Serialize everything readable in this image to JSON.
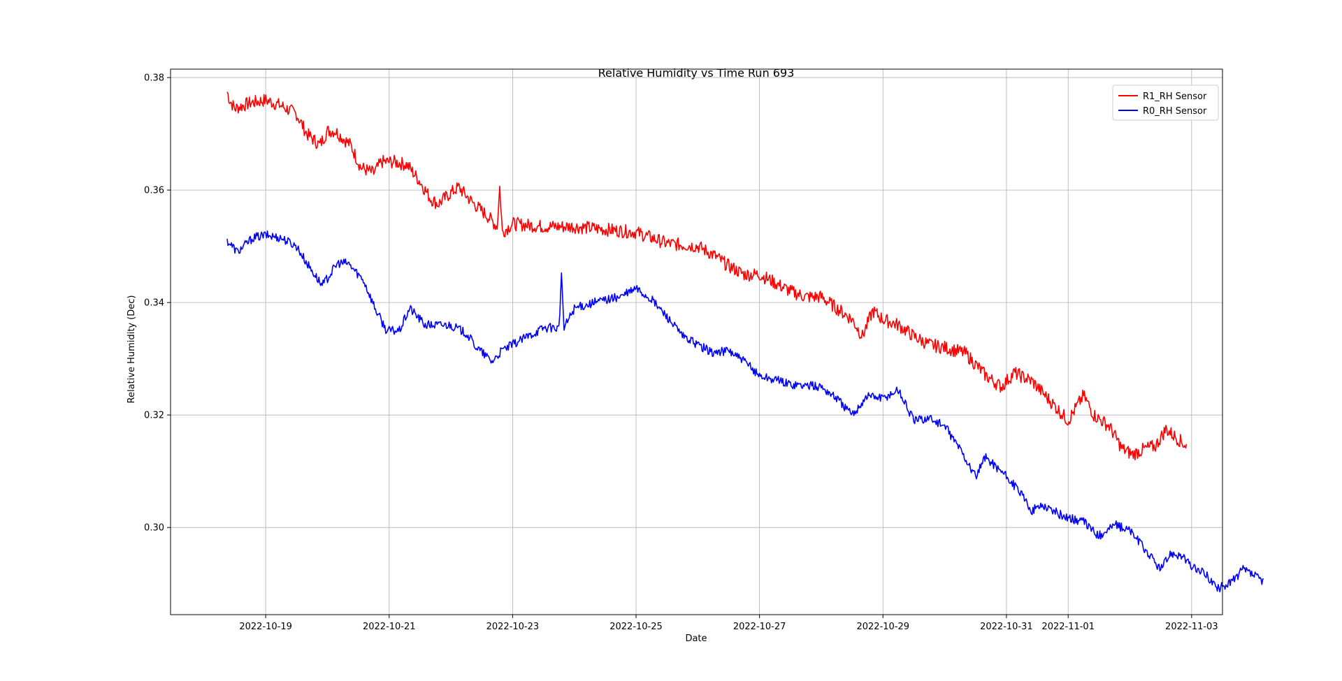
{
  "chart_data": {
    "type": "line",
    "title": "Relative Humidity vs Time Run 693",
    "xlabel": "Date",
    "ylabel": "Relative Humidity (Dec)",
    "xlim": [
      "2022-10-17T11:00",
      "2022-11-03T12:00"
    ],
    "ylim": [
      0.2845,
      0.3815
    ],
    "x_ticks": [
      "2022-10-19",
      "2022-10-21",
      "2022-10-23",
      "2022-10-25",
      "2022-10-27",
      "2022-10-29",
      "2022-10-31",
      "2022-11-01",
      "2022-11-03"
    ],
    "y_ticks": [
      "0.30",
      "0.32",
      "0.34",
      "0.36",
      "0.38"
    ],
    "grid": true,
    "legend_position": "top-right",
    "series": [
      {
        "name": "R1_RH Sensor",
        "color": "#ff0000",
        "noise": 0.0012,
        "points": [
          [
            "2022-10-18T09:00",
            0.3775
          ],
          [
            "2022-10-18T10:00",
            0.376
          ],
          [
            "2022-10-18T12:00",
            0.3745
          ],
          [
            "2022-10-18T18:00",
            0.3755
          ],
          [
            "2022-10-19T00:00",
            0.376
          ],
          [
            "2022-10-19T06:00",
            0.375
          ],
          [
            "2022-10-19T12:00",
            0.3735
          ],
          [
            "2022-10-19T16:00",
            0.37
          ],
          [
            "2022-10-19T21:00",
            0.368
          ],
          [
            "2022-10-20T00:00",
            0.3705
          ],
          [
            "2022-10-20T03:00",
            0.3705
          ],
          [
            "2022-10-20T09:00",
            0.368
          ],
          [
            "2022-10-20T13:00",
            0.364
          ],
          [
            "2022-10-20T18:00",
            0.363
          ],
          [
            "2022-10-20T21:00",
            0.365
          ],
          [
            "2022-10-21T02:00",
            0.365
          ],
          [
            "2022-10-21T07:00",
            0.3645
          ],
          [
            "2022-10-21T12:00",
            0.3615
          ],
          [
            "2022-10-21T16:00",
            0.3585
          ],
          [
            "2022-10-21T19:00",
            0.3575
          ],
          [
            "2022-10-22T00:00",
            0.3595
          ],
          [
            "2022-10-22T03:00",
            0.3605
          ],
          [
            "2022-10-22T09:00",
            0.3575
          ],
          [
            "2022-10-22T14:00",
            0.3555
          ],
          [
            "2022-10-22T18:00",
            0.3535
          ],
          [
            "2022-10-22T19:00",
            0.3605
          ],
          [
            "2022-10-22T20:00",
            0.3525
          ],
          [
            "2022-10-23T00:00",
            0.354
          ],
          [
            "2022-10-23T12:00",
            0.3535
          ],
          [
            "2022-10-24T00:00",
            0.3535
          ],
          [
            "2022-10-24T12:00",
            0.353
          ],
          [
            "2022-10-25T00:00",
            0.3525
          ],
          [
            "2022-10-25T12:00",
            0.3505
          ],
          [
            "2022-10-26T00:00",
            0.35
          ],
          [
            "2022-10-26T06:00",
            0.3485
          ],
          [
            "2022-10-26T12:00",
            0.3465
          ],
          [
            "2022-10-26T18:00",
            0.345
          ],
          [
            "2022-10-27T00:00",
            0.345
          ],
          [
            "2022-10-27T06:00",
            0.3435
          ],
          [
            "2022-10-27T12:00",
            0.342
          ],
          [
            "2022-10-27T18:00",
            0.341
          ],
          [
            "2022-10-28T00:00",
            0.341
          ],
          [
            "2022-10-28T06:00",
            0.339
          ],
          [
            "2022-10-28T12:00",
            0.337
          ],
          [
            "2022-10-28T16:00",
            0.334
          ],
          [
            "2022-10-28T20:00",
            0.3385
          ],
          [
            "2022-10-29T00:00",
            0.337
          ],
          [
            "2022-10-29T06:00",
            0.336
          ],
          [
            "2022-10-29T12:00",
            0.334
          ],
          [
            "2022-10-29T18:00",
            0.3325
          ],
          [
            "2022-10-30T00:00",
            0.332
          ],
          [
            "2022-10-30T08:00",
            0.331
          ],
          [
            "2022-10-30T16:00",
            0.327
          ],
          [
            "2022-10-30T22:00",
            0.325
          ],
          [
            "2022-10-31T03:00",
            0.3275
          ],
          [
            "2022-10-31T10:00",
            0.326
          ],
          [
            "2022-10-31T14:00",
            0.324
          ],
          [
            "2022-10-31T20:00",
            0.321
          ],
          [
            "2022-11-01T00:00",
            0.319
          ],
          [
            "2022-11-01T06:00",
            0.3235
          ],
          [
            "2022-11-01T10:00",
            0.32
          ],
          [
            "2022-11-01T16:00",
            0.318
          ],
          [
            "2022-11-01T21:00",
            0.314
          ],
          [
            "2022-11-02T01:00",
            0.313
          ],
          [
            "2022-11-02T06:00",
            0.314
          ],
          [
            "2022-11-02T10:00",
            0.3145
          ],
          [
            "2022-11-02T14:00",
            0.3175
          ],
          [
            "2022-11-02T18:00",
            0.316
          ],
          [
            "2022-11-02T22:00",
            0.3145
          ]
        ]
      },
      {
        "name": "R0_RH Sensor",
        "color": "#0000ff",
        "noise": 0.0008,
        "points": [
          [
            "2022-10-18T09:00",
            0.351
          ],
          [
            "2022-10-18T13:00",
            0.349
          ],
          [
            "2022-10-18T19:00",
            0.3515
          ],
          [
            "2022-10-19T00:00",
            0.352
          ],
          [
            "2022-10-19T06:00",
            0.3515
          ],
          [
            "2022-10-19T12:00",
            0.35
          ],
          [
            "2022-10-19T16:00",
            0.347
          ],
          [
            "2022-10-19T22:00",
            0.343
          ],
          [
            "2022-10-20T04:00",
            0.347
          ],
          [
            "2022-10-20T08:00",
            0.347
          ],
          [
            "2022-10-20T14:00",
            0.344
          ],
          [
            "2022-10-20T19:00",
            0.3385
          ],
          [
            "2022-10-20T23:00",
            0.335
          ],
          [
            "2022-10-21T04:00",
            0.335
          ],
          [
            "2022-10-21T08:00",
            0.339
          ],
          [
            "2022-10-21T14:00",
            0.336
          ],
          [
            "2022-10-22T00:00",
            0.336
          ],
          [
            "2022-10-22T06:00",
            0.3345
          ],
          [
            "2022-10-22T10:00",
            0.332
          ],
          [
            "2022-10-22T16:00",
            0.3295
          ],
          [
            "2022-10-22T20:00",
            0.3315
          ],
          [
            "2022-10-23T00:00",
            0.3325
          ],
          [
            "2022-10-23T06:00",
            0.334
          ],
          [
            "2022-10-23T12:00",
            0.3355
          ],
          [
            "2022-10-23T18:00",
            0.3355
          ],
          [
            "2022-10-23T19:00",
            0.3445
          ],
          [
            "2022-10-23T20:00",
            0.3355
          ],
          [
            "2022-10-24T00:00",
            0.339
          ],
          [
            "2022-10-24T12:00",
            0.3405
          ],
          [
            "2022-10-24T18:00",
            0.341
          ],
          [
            "2022-10-25T00:00",
            0.3425
          ],
          [
            "2022-10-25T06:00",
            0.3405
          ],
          [
            "2022-10-25T12:00",
            0.3375
          ],
          [
            "2022-10-25T18:00",
            0.334
          ],
          [
            "2022-10-26T00:00",
            0.3325
          ],
          [
            "2022-10-26T06:00",
            0.331
          ],
          [
            "2022-10-26T12:00",
            0.3315
          ],
          [
            "2022-10-26T18:00",
            0.3295
          ],
          [
            "2022-10-27T00:00",
            0.327
          ],
          [
            "2022-10-27T12:00",
            0.3255
          ],
          [
            "2022-10-28T00:00",
            0.325
          ],
          [
            "2022-10-28T06:00",
            0.323
          ],
          [
            "2022-10-28T12:00",
            0.32
          ],
          [
            "2022-10-28T18:00",
            0.3235
          ],
          [
            "2022-10-29T00:00",
            0.323
          ],
          [
            "2022-10-29T06:00",
            0.3245
          ],
          [
            "2022-10-29T12:00",
            0.319
          ],
          [
            "2022-10-29T18:00",
            0.3195
          ],
          [
            "2022-10-30T00:00",
            0.318
          ],
          [
            "2022-10-30T06:00",
            0.314
          ],
          [
            "2022-10-30T12:00",
            0.309
          ],
          [
            "2022-10-30T16:00",
            0.3125
          ],
          [
            "2022-10-30T22:00",
            0.31
          ],
          [
            "2022-10-31T04:00",
            0.307
          ],
          [
            "2022-10-31T10:00",
            0.303
          ],
          [
            "2022-10-31T14:00",
            0.304
          ],
          [
            "2022-10-31T22:00",
            0.302
          ],
          [
            "2022-11-01T06:00",
            0.301
          ],
          [
            "2022-11-01T12:00",
            0.2985
          ],
          [
            "2022-11-01T18:00",
            0.3005
          ],
          [
            "2022-11-02T00:00",
            0.2995
          ],
          [
            "2022-11-02T06:00",
            0.296
          ],
          [
            "2022-11-02T12:00",
            0.2925
          ],
          [
            "2022-11-02T16:00",
            0.2955
          ],
          [
            "2022-11-02T20:00",
            0.295
          ],
          [
            "2022-11-03T00:00",
            0.293
          ],
          [
            "2022-11-03T06:00",
            0.2915
          ],
          [
            "2022-11-03T10:00",
            0.289
          ],
          [
            "2022-11-03T16:00",
            0.2905
          ],
          [
            "2022-11-03T20:00",
            0.2925
          ],
          [
            "2022-11-04T00:00",
            0.2915
          ],
          [
            "2022-11-04T04:00",
            0.2905
          ]
        ]
      }
    ]
  }
}
